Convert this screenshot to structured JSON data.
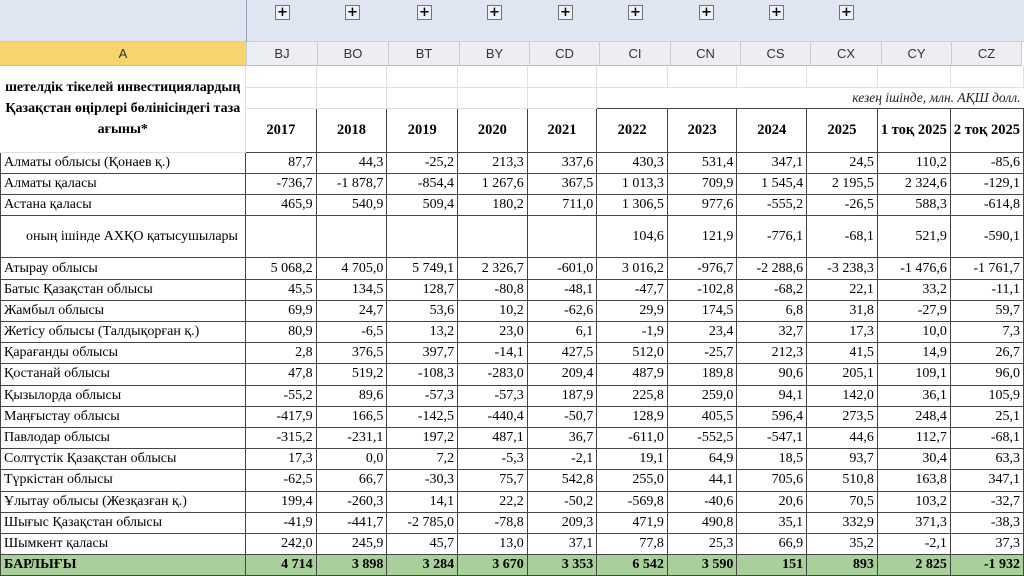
{
  "sheet": {
    "active_column": "A",
    "columns": [
      "A",
      "BJ",
      "BO",
      "BT",
      "BY",
      "CD",
      "CI",
      "CN",
      "CS",
      "CX",
      "CY",
      "CZ"
    ],
    "group_expand_buttons": 9,
    "group_button_icon": "plus-icon",
    "title": "шетелдік тікелей инвестициялардың Қазақстан өңірлері бөлінісіндегі таза ағыны*",
    "unit": "кезең ішінде, млн. АҚШ долл.",
    "headers": [
      "2017",
      "2018",
      "2019",
      "2020",
      "2021",
      "2022",
      "2023",
      "2024",
      "2025",
      "1 тоқ 2025",
      "2 тоқ 2025"
    ],
    "rows": [
      {
        "label": "Алматы облысы (Қонаев қ.)",
        "values": [
          "87,7",
          "44,3",
          "-25,2",
          "213,3",
          "337,6",
          "430,3",
          "531,4",
          "347,1",
          "24,5",
          "110,2",
          "-85,6"
        ]
      },
      {
        "label": "Алматы қаласы",
        "values": [
          "-736,7",
          "-1 878,7",
          "-854,4",
          "1 267,6",
          "367,5",
          "1 013,3",
          "709,9",
          "1 545,4",
          "2 195,5",
          "2 324,6",
          "-129,1"
        ]
      },
      {
        "label": "Астана қаласы",
        "values": [
          "465,9",
          "540,9",
          "509,4",
          "180,2",
          "711,0",
          "1 306,5",
          "977,6",
          "-555,2",
          "-26,5",
          "588,3",
          "-614,8"
        ]
      },
      {
        "label": "оның ішінде АХҚО қатысушылары",
        "indent": true,
        "values": [
          "",
          "",
          "",
          "",
          "",
          "104,6",
          "121,9",
          "-776,1",
          "-68,1",
          "521,9",
          "-590,1"
        ]
      },
      {
        "label": "Атырау облысы",
        "values": [
          "5 068,2",
          "4 705,0",
          "5 749,1",
          "2 326,7",
          "-601,0",
          "3 016,2",
          "-976,7",
          "-2 288,6",
          "-3 238,3",
          "-1 476,6",
          "-1 761,7"
        ]
      },
      {
        "label": "Батыс Қазақстан облысы",
        "values": [
          "45,5",
          "134,5",
          "128,7",
          "-80,8",
          "-48,1",
          "-47,7",
          "-102,8",
          "-68,2",
          "22,1",
          "33,2",
          "-11,1"
        ]
      },
      {
        "label": "Жамбыл облысы",
        "values": [
          "69,9",
          "24,7",
          "53,6",
          "10,2",
          "-62,6",
          "29,9",
          "174,5",
          "6,8",
          "31,8",
          "-27,9",
          "59,7"
        ]
      },
      {
        "label": "Жетісу облысы (Талдықорған қ.)",
        "values": [
          "80,9",
          "-6,5",
          "13,2",
          "23,0",
          "6,1",
          "-1,9",
          "23,4",
          "32,7",
          "17,3",
          "10,0",
          "7,3"
        ]
      },
      {
        "label": "Қарағанды облысы",
        "values": [
          "2,8",
          "376,5",
          "397,7",
          "-14,1",
          "427,5",
          "512,0",
          "-25,7",
          "212,3",
          "41,5",
          "14,9",
          "26,7"
        ]
      },
      {
        "label": "Қостанай облысы",
        "values": [
          "47,8",
          "519,2",
          "-108,3",
          "-283,0",
          "209,4",
          "487,9",
          "189,8",
          "90,6",
          "205,1",
          "109,1",
          "96,0"
        ]
      },
      {
        "label": "Қызылорда облысы",
        "values": [
          "-55,2",
          "89,6",
          "-57,3",
          "-57,3",
          "187,9",
          "225,8",
          "259,0",
          "94,1",
          "142,0",
          "36,1",
          "105,9"
        ]
      },
      {
        "label": "Маңғыстау облысы",
        "values": [
          "-417,9",
          "166,5",
          "-142,5",
          "-440,4",
          "-50,7",
          "128,9",
          "405,5",
          "596,4",
          "273,5",
          "248,4",
          "25,1"
        ]
      },
      {
        "label": "Павлодар облысы",
        "values": [
          "-315,2",
          "-231,1",
          "197,2",
          "487,1",
          "36,7",
          "-611,0",
          "-552,5",
          "-547,1",
          "44,6",
          "112,7",
          "-68,1"
        ]
      },
      {
        "label": "Солтүстік Қазақстан облысы",
        "values": [
          "17,3",
          "0,0",
          "7,2",
          "-5,3",
          "-2,1",
          "19,1",
          "64,9",
          "18,5",
          "93,7",
          "30,4",
          "63,3"
        ]
      },
      {
        "label": "Түркістан облысы",
        "values": [
          "-62,5",
          "66,7",
          "-30,3",
          "75,7",
          "542,8",
          "255,0",
          "44,1",
          "705,6",
          "510,8",
          "163,8",
          "347,1"
        ]
      },
      {
        "label": "Ұлытау облысы (Жезқазған қ.)",
        "values": [
          "199,4",
          "-260,3",
          "14,1",
          "22,2",
          "-50,2",
          "-569,8",
          "-40,6",
          "20,6",
          "70,5",
          "103,2",
          "-32,7"
        ]
      },
      {
        "label": "Шығыс Қазақстан облысы",
        "values": [
          "-41,9",
          "-441,7",
          "-2 785,0",
          "-78,8",
          "209,3",
          "471,9",
          "490,8",
          "35,1",
          "332,9",
          "371,3",
          "-38,3"
        ]
      },
      {
        "label": "Шымкент қаласы",
        "values": [
          "242,0",
          "245,9",
          "45,7",
          "13,0",
          "37,1",
          "77,8",
          "25,3",
          "66,9",
          "35,2",
          "-2,1",
          "37,3"
        ]
      }
    ],
    "total": {
      "label": "БАРЛЫҒЫ",
      "values": [
        "4 714",
        "3 898",
        "3 284",
        "3 670",
        "3 353",
        "6 542",
        "3 590",
        "151",
        "893",
        "2 825",
        "-1 932"
      ]
    },
    "colors": {
      "total_row": "#a9cf9a",
      "active_header": "#f8d46c",
      "group_bar": "#dfe6f2"
    }
  }
}
